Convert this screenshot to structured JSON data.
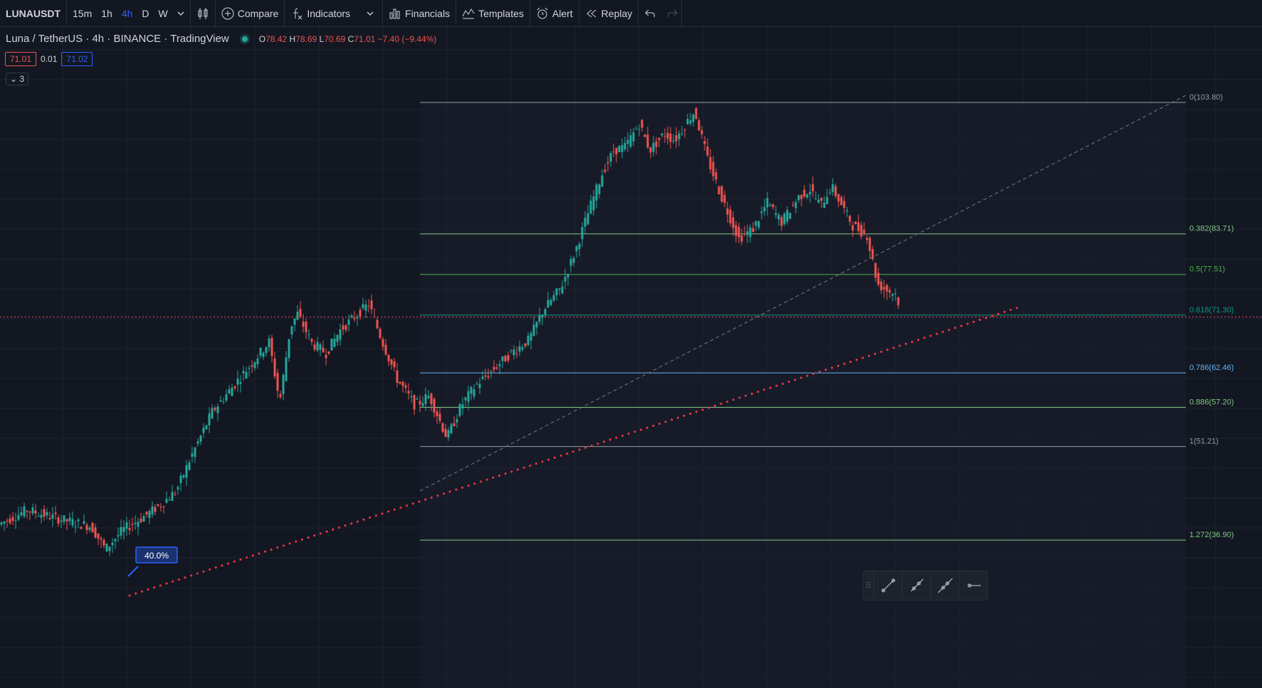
{
  "toolbar": {
    "symbol": "LUNAUSDT",
    "intervals": [
      "15m",
      "1h",
      "4h",
      "D",
      "W"
    ],
    "compare_label": "Compare",
    "indicators_label": "Indicators",
    "financials_label": "Financials",
    "templates_label": "Templates",
    "alert_label": "Alert",
    "replay_label": "Replay"
  },
  "legend": {
    "title": "Luna / TetherUS · 4h · BINANCE · TradingView",
    "o_label": "O",
    "o_value": "78.42",
    "h_label": "H",
    "h_value": "78.69",
    "l_label": "L",
    "l_value": "70.69",
    "c_label": "C",
    "c_value": "71.01",
    "change": "−7.40 (−9.44%)"
  },
  "price_box": {
    "bid": "71.01",
    "spread": "0.01",
    "ask": "71.02"
  },
  "collapse_label": "3",
  "fib_levels": [
    {
      "label": "0(103.80)",
      "value": 103.8,
      "color": "#9598a1"
    },
    {
      "label": "0.382(83.71)",
      "value": 83.71,
      "color": "#81c784"
    },
    {
      "label": "0.5(77.51)",
      "value": 77.51,
      "color": "#4caf50"
    },
    {
      "label": "0.618(71.30)",
      "value": 71.3,
      "color": "#089981"
    },
    {
      "label": "0.786(62.46)",
      "value": 62.46,
      "color": "#64b5f6"
    },
    {
      "label": "0.886(57.20)",
      "value": 57.2,
      "color": "#81c784"
    },
    {
      "label": "1(51.21)",
      "value": 51.21,
      "color": "#9598a1"
    },
    {
      "label": "1.272(36.90)",
      "value": 36.9,
      "color": "#81c784"
    }
  ],
  "measure_label": "40.0%",
  "colors": {
    "up": "#26a69a",
    "down": "#ef5350",
    "background": "#131722",
    "accent": "#2962ff"
  }
}
